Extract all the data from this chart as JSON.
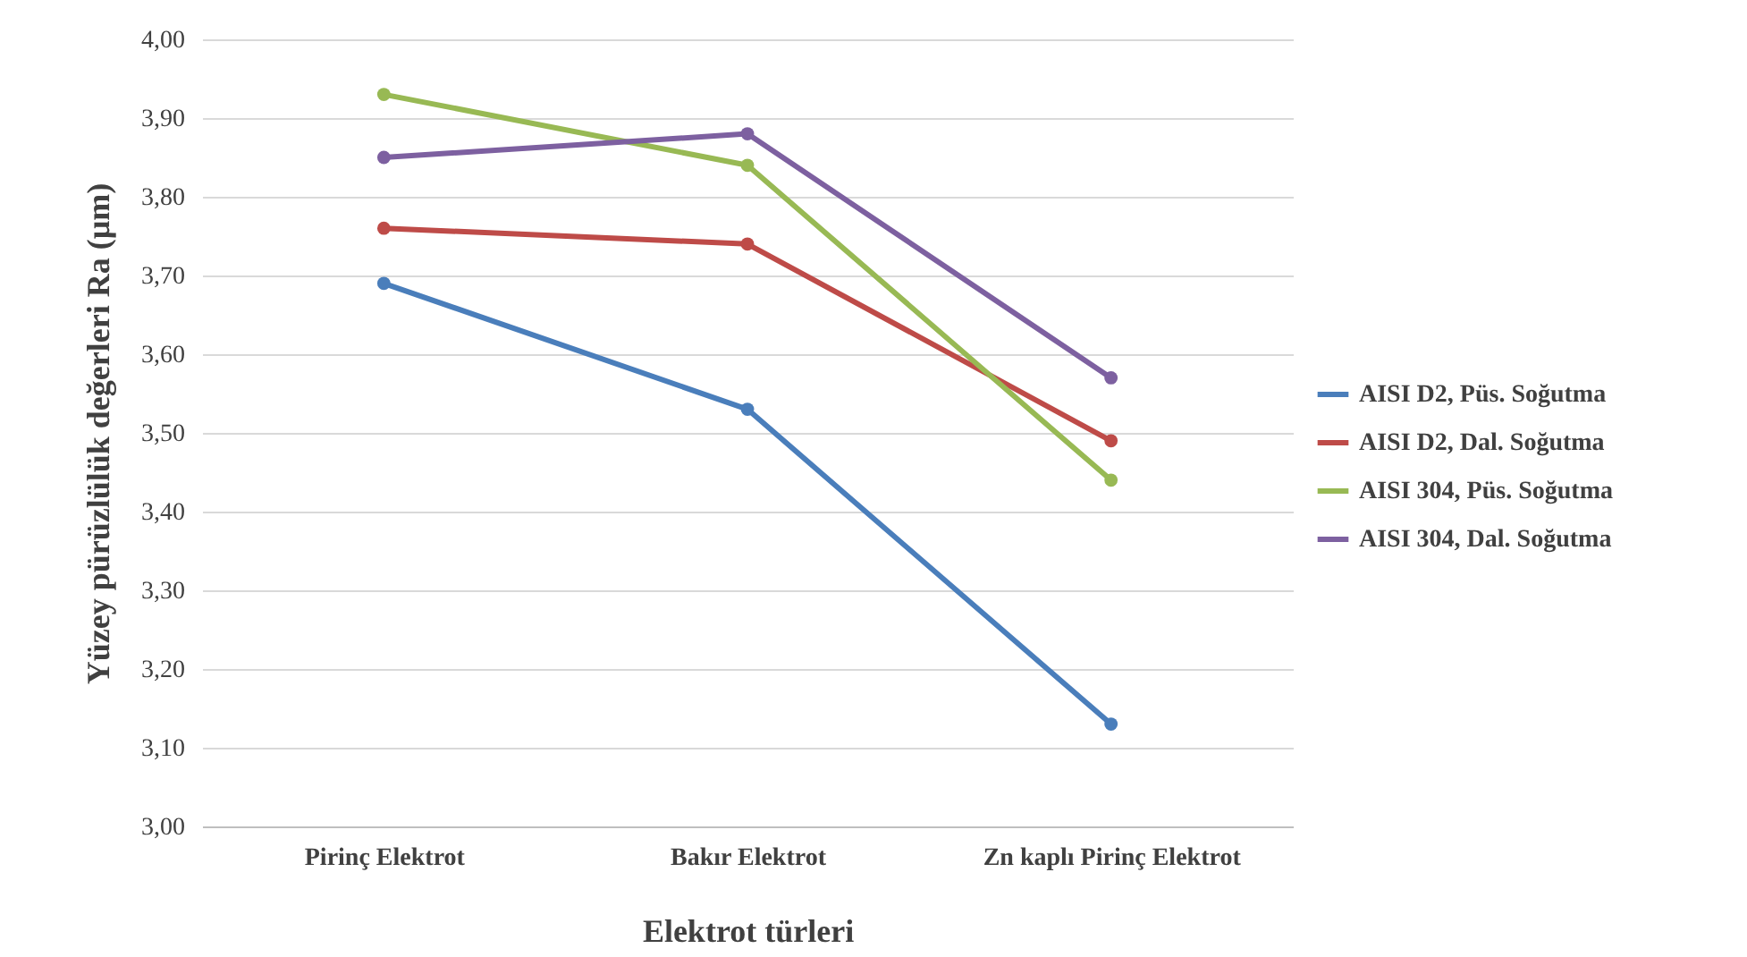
{
  "chart_data": {
    "type": "line",
    "xlabel": "Elektrot türleri",
    "ylabel": "Yüzey pürüzlülük  değerleri Ra (µm)",
    "categories": [
      "Pirinç Elektrot",
      "Bakır Elektrot",
      "Zn kaplı Pirinç Elektrot"
    ],
    "series": [
      {
        "name": "AISI D2, Püs. Soğutma",
        "color": "#4a7ebb",
        "values": [
          3.69,
          3.53,
          3.13
        ]
      },
      {
        "name": "AISI D2, Dal. Soğutma",
        "color": "#be4b48",
        "values": [
          3.76,
          3.74,
          3.49
        ]
      },
      {
        "name": "AISI 304, Püs. Soğutma",
        "color": "#98b954",
        "values": [
          3.93,
          3.84,
          3.44
        ]
      },
      {
        "name": "AISI 304, Dal. Soğutma",
        "color": "#7d60a0",
        "values": [
          3.85,
          3.88,
          3.57
        ]
      }
    ],
    "ylim": [
      3.0,
      4.0
    ],
    "yticks": [
      {
        "value": 3.0,
        "label": "3,00"
      },
      {
        "value": 3.1,
        "label": "3,10"
      },
      {
        "value": 3.2,
        "label": "3,20"
      },
      {
        "value": 3.3,
        "label": "3,30"
      },
      {
        "value": 3.4,
        "label": "3,40"
      },
      {
        "value": 3.5,
        "label": "3,50"
      },
      {
        "value": 3.6,
        "label": "3,60"
      },
      {
        "value": 3.7,
        "label": "3,70"
      },
      {
        "value": 3.8,
        "label": "3,80"
      },
      {
        "value": 3.9,
        "label": "3,90"
      },
      {
        "value": 4.0,
        "label": "4,00"
      }
    ],
    "grid": "y",
    "legend": "right",
    "marker": "circle",
    "line_style": "solid"
  }
}
